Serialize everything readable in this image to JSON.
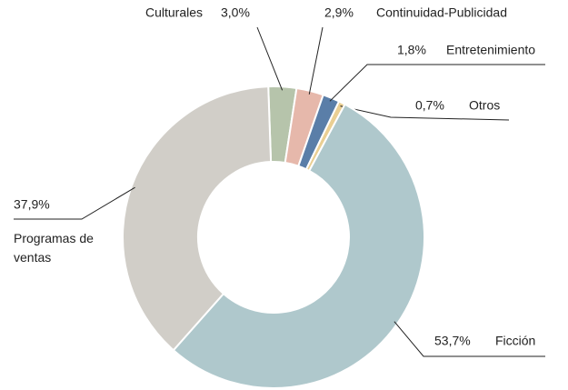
{
  "chart_data": {
    "type": "donut",
    "categories": [
      "Culturales",
      "Continuidad-Publicidad",
      "Entretenimiento",
      "Otros",
      "Ficción",
      "Programas de ventas"
    ],
    "values": [
      3.0,
      2.9,
      1.8,
      0.7,
      53.7,
      37.9
    ],
    "value_labels": [
      "3,0%",
      "2,9%",
      "1,8%",
      "0,7%",
      "53,7%",
      "37,9%"
    ],
    "colors": [
      "#b6c4ab",
      "#e6b8ab",
      "#5a7ea8",
      "#eacf93",
      "#afc8cc",
      "#d1cec8"
    ]
  }
}
